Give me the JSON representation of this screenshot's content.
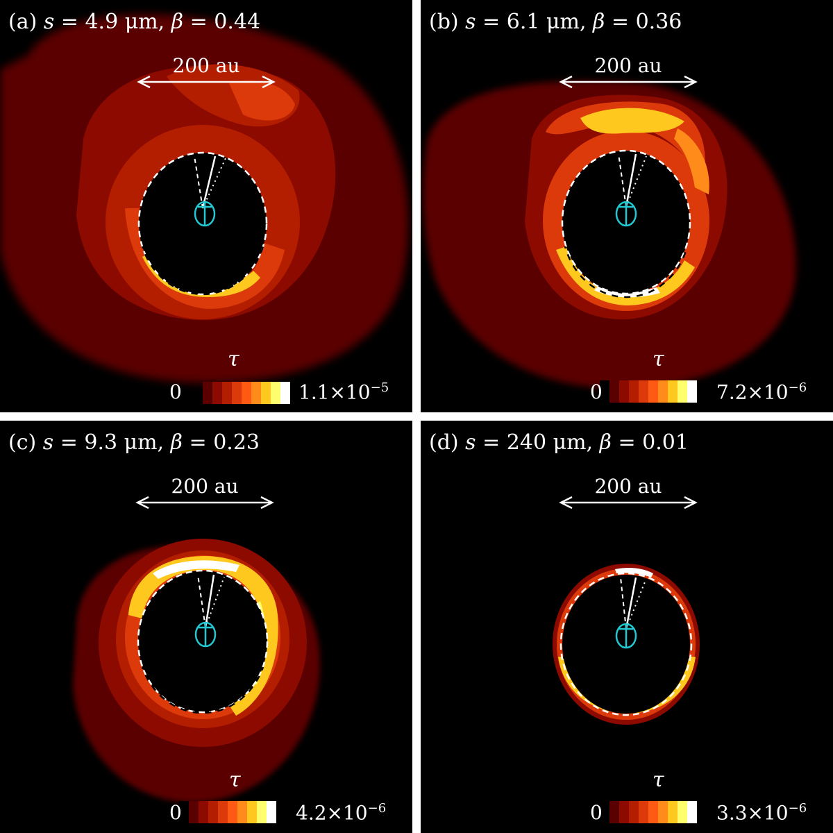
{
  "colormap": [
    "#000000",
    "#5a0000",
    "#8c0a00",
    "#b41e00",
    "#dc3a0a",
    "#ff5a14",
    "#ff8c1a",
    "#ffc81e",
    "#ffff6e",
    "#ffffff"
  ],
  "chart_data": [
    {
      "type": "heatmap",
      "panel_label": "(a)",
      "title": {
        "label": "(a) ",
        "s_sym": "s",
        "s_val": " = 4.9 μm, ",
        "b_sym": "β",
        "b_val": " = 0.44"
      },
      "s_um": 4.9,
      "beta": 0.44,
      "scale_bar": "200 au",
      "colorbar": {
        "label": "τ",
        "min": "0",
        "max_mant": "1.1×10",
        "max_exp": "−5"
      },
      "tau_max": 1.1e-05
    },
    {
      "type": "heatmap",
      "panel_label": "(b)",
      "title": {
        "label": "(b) ",
        "s_sym": "s",
        "s_val": " = 6.1 μm, ",
        "b_sym": "β",
        "b_val": " = 0.36"
      },
      "s_um": 6.1,
      "beta": 0.36,
      "scale_bar": "200 au",
      "colorbar": {
        "label": "τ",
        "min": "0",
        "max_mant": "7.2×10",
        "max_exp": "−6"
      },
      "tau_max": 7.2e-06
    },
    {
      "type": "heatmap",
      "panel_label": "(c)",
      "title": {
        "label": "(c) ",
        "s_sym": "s",
        "s_val": " = 9.3 μm, ",
        "b_sym": "β",
        "b_val": " = 0.23"
      },
      "s_um": 9.3,
      "beta": 0.23,
      "scale_bar": "200 au",
      "colorbar": {
        "label": "τ",
        "min": "0",
        "max_mant": "4.2×10",
        "max_exp": "−6"
      },
      "tau_max": 4.2e-06
    },
    {
      "type": "heatmap",
      "panel_label": "(d)",
      "title": {
        "label": "(d) ",
        "s_sym": "s",
        "s_val": " = 240 μm, ",
        "b_sym": "β",
        "b_val": " = 0.01"
      },
      "s_um": 240,
      "beta": 0.01,
      "scale_bar": "200 au",
      "colorbar": {
        "label": "τ",
        "min": "0",
        "max_mant": "3.3×10",
        "max_exp": "−6"
      },
      "tau_max": 3.3e-06
    }
  ]
}
